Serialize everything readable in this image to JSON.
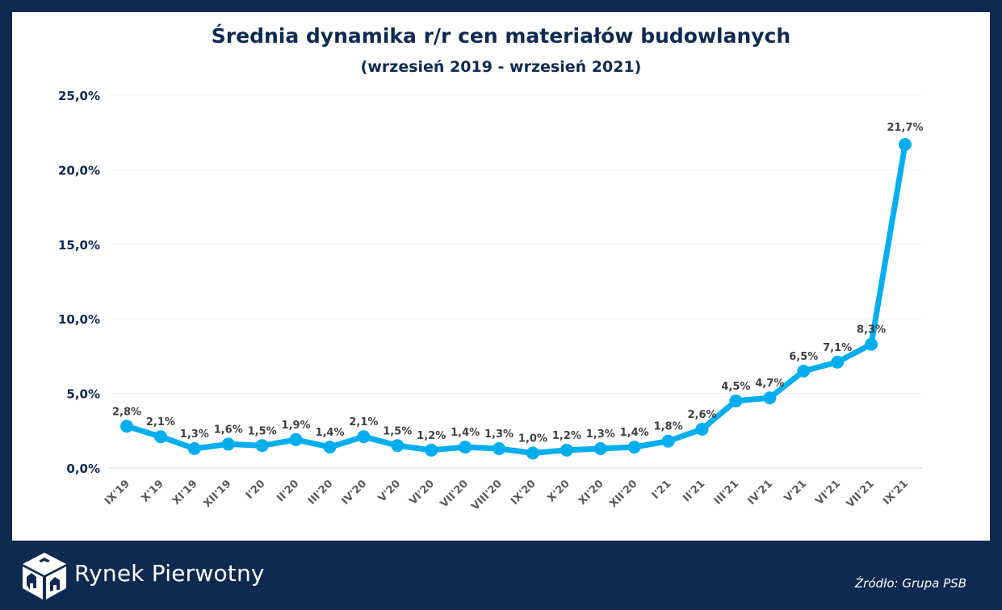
{
  "chart_data": {
    "type": "line",
    "title": "Średnia dynamika r/r cen materiałów budowlanych",
    "subtitle": "(wrzesień 2019 - wrzesień 2021)",
    "categories": [
      "IX'19",
      "X'19",
      "XI'19",
      "XII'19",
      "I'20",
      "II'20",
      "III'20",
      "IV'20",
      "V'20",
      "VI'20",
      "VII'20",
      "VIII'20",
      "IX'20",
      "X'20",
      "XI'20",
      "XII'20",
      "I'21",
      "II'21",
      "III'21",
      "IV'21",
      "V'21",
      "VI'21",
      "VII'21",
      "IX'21"
    ],
    "values": [
      2.8,
      2.1,
      1.3,
      1.6,
      1.5,
      1.9,
      1.4,
      2.1,
      1.5,
      1.2,
      1.4,
      1.3,
      1.0,
      1.2,
      1.3,
      1.4,
      1.8,
      2.6,
      4.5,
      4.7,
      6.5,
      7.1,
      8.3,
      21.7
    ],
    "data_labels": [
      "2,8%",
      "2,1%",
      "1,3%",
      "1,6%",
      "1,5%",
      "1,9%",
      "1,4%",
      "2,1%",
      "1,5%",
      "1,2%",
      "1,4%",
      "1,3%",
      "1,0%",
      "1,2%",
      "1,3%",
      "1,4%",
      "1,8%",
      "2,6%",
      "4,5%",
      "4,7%",
      "6,5%",
      "7,1%",
      "8,3%",
      "21,7%"
    ],
    "y_ticks": [
      "0,0%",
      "5,0%",
      "10,0%",
      "15,0%",
      "20,0%",
      "25,0%"
    ],
    "ylim": [
      0,
      25
    ],
    "grid": true,
    "legend": "none",
    "line_color": "#00aeef"
  },
  "footer": {
    "brand": "Rynek Pierwotny",
    "source": "Źródło: Grupa PSB"
  },
  "colors": {
    "background": "#0e2a50",
    "panel": "#ffffff",
    "title": "#0e2a50"
  }
}
